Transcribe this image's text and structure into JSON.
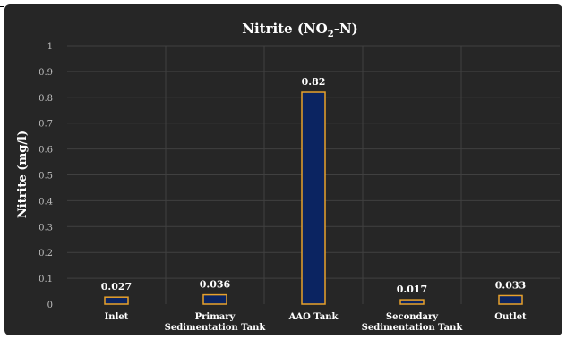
{
  "chart_data": {
    "type": "bar",
    "title_main": "Nitrite (NO",
    "title_sub": "2",
    "title_end": "-N)",
    "ylabel": "Nitrite (mg/l)",
    "xlabel": "",
    "ylim": [
      0,
      1
    ],
    "y_ticks": [
      "0",
      "0.1",
      "0.2",
      "0.3",
      "0.4",
      "0.5",
      "0.6",
      "0.7",
      "0.8",
      "0.9",
      "1"
    ],
    "categories": [
      {
        "line1": "Inlet",
        "line2": ""
      },
      {
        "line1": "Primary",
        "line2": "Sedimentation Tank"
      },
      {
        "line1": "AAO Tank",
        "line2": ""
      },
      {
        "line1": "Secondary",
        "line2": "Sedimentation Tank"
      },
      {
        "line1": "Outlet",
        "line2": ""
      }
    ],
    "values": [
      0.027,
      0.036,
      0.82,
      0.017,
      0.033
    ],
    "data_labels": [
      "0.027",
      "0.036",
      "0.82",
      "0.017",
      "0.033"
    ],
    "grid": true,
    "legend": "none",
    "colors": {
      "bar_fill": "#0b2461",
      "bar_edge": "#e7a12b",
      "background": "#262626",
      "grid": "#404040",
      "text": "#ffffff",
      "tick_text": "#bfbfbf"
    }
  }
}
